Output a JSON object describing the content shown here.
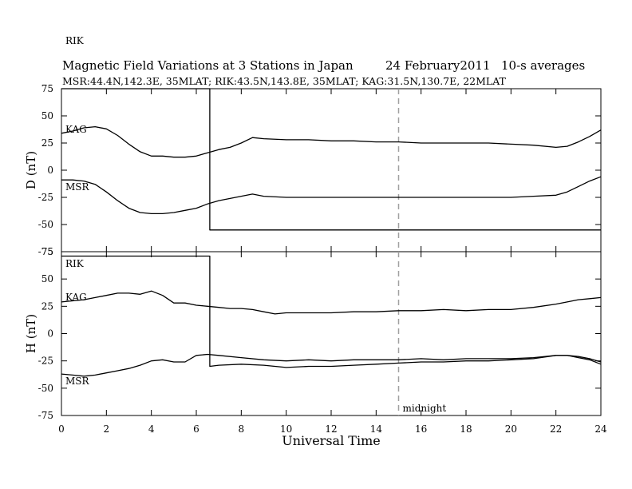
{
  "figure": {
    "title": "Magnetic Field Variations at 3 Stations in Japan",
    "date": "24  February2011",
    "averaging": "10-s averages",
    "stations_line": "MSR:44.4N,142.3E, 35MLAT;  RIK:43.5N,143.8E, 35MLAT;  KAG:31.5N,130.7E, 22MLAT"
  },
  "chart_data": [
    {
      "type": "line",
      "ylabel": "D (nT)",
      "xlabel": "",
      "xlim": [
        0,
        24
      ],
      "ylim": [
        -75,
        75
      ],
      "xticks": [
        0,
        2,
        4,
        6,
        8,
        10,
        12,
        14,
        16,
        18,
        20,
        22,
        24
      ],
      "yticks": [
        75,
        50,
        25,
        0,
        -25,
        -50,
        -75
      ],
      "marker_line": {
        "x": 15,
        "style": "dashed"
      },
      "series": [
        {
          "name": "RIK",
          "x": [
            0,
            6.6,
            6.6,
            24
          ],
          "y": [
            75,
            75,
            -55,
            -55
          ]
        },
        {
          "name": "KAG",
          "x": [
            0,
            0.5,
            1,
            1.5,
            2,
            2.5,
            3,
            3.5,
            4,
            4.5,
            5,
            5.5,
            6,
            6.5,
            7,
            7.5,
            8,
            8.5,
            9,
            10,
            11,
            12,
            13,
            14,
            15,
            16,
            17,
            18,
            19,
            20,
            21,
            22,
            22.5,
            23,
            23.5,
            24
          ],
          "y": [
            34,
            36,
            39,
            40,
            38,
            32,
            24,
            17,
            13,
            13,
            12,
            12,
            13,
            16,
            19,
            21,
            25,
            30,
            29,
            28,
            28,
            27,
            27,
            26,
            26,
            25,
            25,
            25,
            25,
            24,
            23,
            21,
            22,
            26,
            31,
            37
          ]
        },
        {
          "name": "MSR",
          "x": [
            0,
            0.5,
            1,
            1.5,
            2,
            2.5,
            3,
            3.5,
            4,
            4.5,
            5,
            5.5,
            6,
            6.5,
            7,
            7.5,
            8,
            8.5,
            9,
            10,
            11,
            12,
            13,
            14,
            15,
            16,
            17,
            18,
            19,
            20,
            21,
            22,
            22.5,
            23,
            23.5,
            24
          ],
          "y": [
            -9,
            -9,
            -10,
            -13,
            -20,
            -28,
            -35,
            -39,
            -40,
            -40,
            -39,
            -37,
            -35,
            -31,
            -28,
            -26,
            -24,
            -22,
            -24,
            -25,
            -25,
            -25,
            -25,
            -25,
            -25,
            -25,
            -25,
            -25,
            -25,
            -25,
            -24,
            -23,
            -20,
            -15,
            -10,
            -6
          ]
        }
      ],
      "annotations": []
    },
    {
      "type": "line",
      "ylabel": "H (nT)",
      "xlabel": "Universal Time",
      "xlim": [
        0,
        24
      ],
      "ylim": [
        -75,
        75
      ],
      "xticks": [
        0,
        2,
        4,
        6,
        8,
        10,
        12,
        14,
        16,
        18,
        20,
        22,
        24
      ],
      "yticks": [
        75,
        50,
        25,
        0,
        -25,
        -50,
        -75
      ],
      "marker_line": {
        "x": 15,
        "style": "dashed"
      },
      "series": [
        {
          "name": "RIK",
          "x": [
            0,
            6.6,
            6.6,
            7,
            8,
            9,
            10,
            11,
            12,
            13,
            14,
            15,
            16,
            17,
            18,
            19,
            20,
            21,
            22,
            22.5,
            23,
            23.5,
            24
          ],
          "y": [
            71,
            71,
            -30,
            -29,
            -28,
            -29,
            -31,
            -30,
            -30,
            -29,
            -28,
            -27,
            -26,
            -26,
            -25,
            -25,
            -24,
            -23,
            -20,
            -20,
            -22,
            -24,
            -28
          ]
        },
        {
          "name": "KAG",
          "x": [
            0,
            0.5,
            1,
            1.5,
            2,
            2.5,
            3,
            3.5,
            4,
            4.5,
            5,
            5.5,
            6,
            6.5,
            7,
            7.5,
            8,
            8.5,
            9,
            9.5,
            10,
            11,
            12,
            13,
            14,
            15,
            16,
            17,
            18,
            19,
            20,
            21,
            22,
            22.5,
            23,
            23.5,
            24
          ],
          "y": [
            29,
            30,
            31,
            33,
            35,
            37,
            37,
            36,
            39,
            35,
            28,
            28,
            26,
            25,
            24,
            23,
            23,
            22,
            20,
            18,
            19,
            19,
            19,
            20,
            20,
            21,
            21,
            22,
            21,
            22,
            22,
            24,
            27,
            29,
            31,
            32,
            33
          ]
        },
        {
          "name": "MSR",
          "x": [
            0,
            0.5,
            1,
            1.5,
            2,
            2.5,
            3,
            3.5,
            4,
            4.5,
            5,
            5.5,
            6,
            6.5,
            7,
            8,
            9,
            10,
            11,
            12,
            13,
            14,
            15,
            16,
            17,
            18,
            19,
            20,
            21,
            22,
            22.5,
            23,
            23.5,
            24
          ],
          "y": [
            -37,
            -38,
            -39,
            -38,
            -36,
            -34,
            -32,
            -29,
            -25,
            -24,
            -26,
            -26,
            -20,
            -19,
            -20,
            -22,
            -24,
            -25,
            -24,
            -25,
            -24,
            -24,
            -24,
            -23,
            -24,
            -23,
            -23,
            -23,
            -22,
            -20,
            -20,
            -21,
            -23,
            -26
          ]
        }
      ],
      "annotations": [
        "midnight"
      ]
    }
  ]
}
